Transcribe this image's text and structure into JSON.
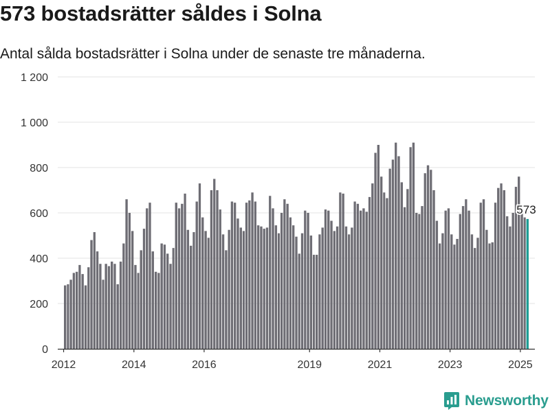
{
  "header": {
    "title": "573 bostadsrätter såldes i Solna",
    "subtitle": "Antal sålda bostadsrätter i Solna under de senaste tre månaderna."
  },
  "brand": {
    "name": "Newsworthy",
    "icon": "newsworthy-logo-icon",
    "color": "#2a9d8f"
  },
  "colors": {
    "bar": "#6e6d74",
    "highlight": "#1e9e95",
    "grid": "#e3e3e3",
    "axis": "#333333"
  },
  "chart_data": {
    "type": "bar",
    "grid": true,
    "legend": "none",
    "ylim": [
      0,
      1200
    ],
    "yticks": [
      {
        "value": 0,
        "label": "0"
      },
      {
        "value": 200,
        "label": "200"
      },
      {
        "value": 400,
        "label": "400"
      },
      {
        "value": 600,
        "label": "600"
      },
      {
        "value": 800,
        "label": "800"
      },
      {
        "value": 1000,
        "label": "1 000"
      },
      {
        "value": 1200,
        "label": "1 200"
      }
    ],
    "xlim": [
      "2011-11-01",
      "2025-06-01"
    ],
    "xticks": [
      {
        "value": "2012-01-01",
        "label": "2012"
      },
      {
        "value": "2014-01-01",
        "label": "2014"
      },
      {
        "value": "2016-01-01",
        "label": "2016"
      },
      {
        "value": "2019-01-01",
        "label": "2019"
      },
      {
        "value": "2021-01-01",
        "label": "2021"
      },
      {
        "value": "2023-01-01",
        "label": "2023"
      },
      {
        "value": "2025-01-01",
        "label": "2025"
      }
    ],
    "start_month": "2012-01",
    "values": [
      280,
      285,
      305,
      335,
      340,
      370,
      330,
      280,
      360,
      480,
      515,
      430,
      375,
      305,
      375,
      365,
      385,
      375,
      285,
      385,
      465,
      660,
      600,
      520,
      370,
      335,
      435,
      530,
      620,
      645,
      430,
      340,
      335,
      465,
      460,
      420,
      375,
      445,
      645,
      620,
      640,
      685,
      525,
      455,
      515,
      650,
      730,
      580,
      520,
      490,
      700,
      750,
      700,
      615,
      505,
      435,
      525,
      650,
      645,
      575,
      535,
      520,
      645,
      655,
      690,
      650,
      545,
      540,
      530,
      535,
      675,
      620,
      545,
      510,
      600,
      660,
      640,
      580,
      545,
      495,
      420,
      510,
      610,
      600,
      500,
      415,
      415,
      505,
      535,
      615,
      610,
      565,
      520,
      540,
      690,
      685,
      540,
      505,
      535,
      650,
      640,
      610,
      620,
      605,
      670,
      730,
      865,
      900,
      760,
      690,
      665,
      795,
      835,
      910,
      850,
      735,
      625,
      705,
      890,
      910,
      600,
      595,
      630,
      775,
      810,
      790,
      700,
      565,
      465,
      510,
      610,
      620,
      505,
      460,
      485,
      595,
      630,
      660,
      610,
      505,
      445,
      490,
      645,
      660,
      525,
      465,
      470,
      645,
      710,
      730,
      700,
      585,
      540,
      600,
      715,
      760,
      615,
      580,
      573
    ],
    "highlight": {
      "label": "573",
      "value": 573
    }
  }
}
